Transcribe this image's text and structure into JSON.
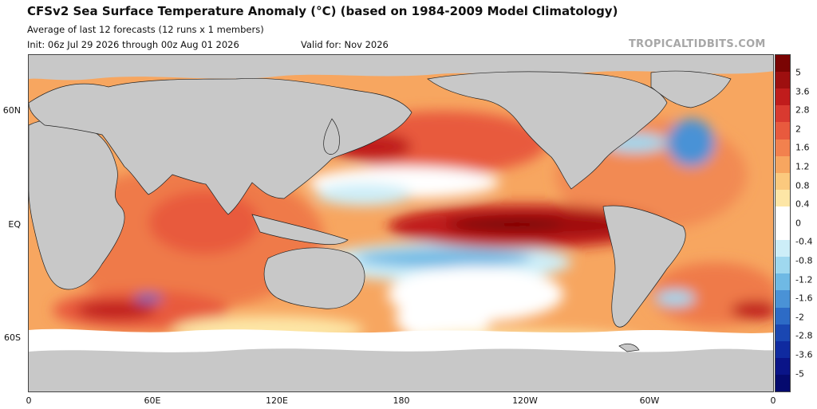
{
  "header": {
    "title": "CFSv2 Sea Surface Temperature Anomaly (°C) (based on 1984-2009 Model Climatology)",
    "subtitle": "Average of last 12 forecasts (12 runs x 1 members)",
    "init": "Init: 06z Jul 29 2026 through 00z Aug 01 2026",
    "valid": "Valid for: Nov 2026",
    "brand": "TROPICALTIDBITS.COM"
  },
  "axes": {
    "lat_ticks": [
      "60N",
      "EQ",
      "60S"
    ],
    "lon_ticks": [
      "0",
      "60E",
      "120E",
      "180",
      "120W",
      "60W",
      "0"
    ]
  },
  "colorbar": {
    "labels": [
      "5",
      "3.6",
      "2.8",
      "2",
      "1.6",
      "1.2",
      "0.8",
      "0.4",
      "0",
      "-0.4",
      "-0.8",
      "-1.2",
      "-1.6",
      "-2",
      "-2.8",
      "-3.6",
      "-5"
    ],
    "colors": [
      "#7a0403",
      "#9e0f0f",
      "#c01c1c",
      "#d93a30",
      "#e85a3e",
      "#f2814e",
      "#f7a660",
      "#fbc97e",
      "#fde6a6",
      "#ffffff",
      "#ffffff",
      "#cdeef8",
      "#9fd8ef",
      "#6fb9e4",
      "#4a92d6",
      "#2d6bc6",
      "#1a47b2",
      "#0f2aa0",
      "#0a1488",
      "#050a6e"
    ]
  },
  "colors": {
    "land": "#c8c8c8",
    "ice": "#c8c8c8",
    "ocean_base": "#fbc97e"
  }
}
